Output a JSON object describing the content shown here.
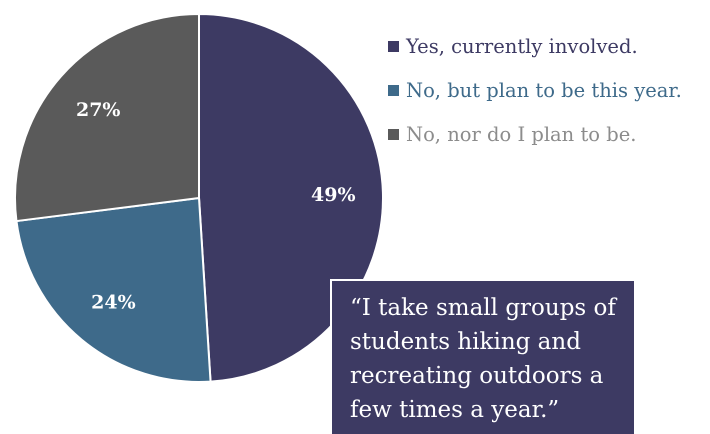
{
  "chart_data": {
    "type": "pie",
    "slices": [
      {
        "label": "Yes, currently involved.",
        "value": 49,
        "value_label": "49%",
        "color": "#3d3a63"
      },
      {
        "label": "No, but plan to be this year.",
        "value": 24,
        "value_label": "24%",
        "color": "#3e6a8a"
      },
      {
        "label": "No, nor do I plan to be.",
        "value": 27,
        "value_label": "27%",
        "color": "#5a5a5a"
      }
    ],
    "legend_position": "top-right",
    "start_angle_deg": 0,
    "direction": "clockwise"
  },
  "legend_text_colors": [
    "#3d3a63",
    "#3e6a8a",
    "#8c8c8c"
  ],
  "quote": "“I take small groups of students hiking and recreating outdoors a few times a year.”"
}
